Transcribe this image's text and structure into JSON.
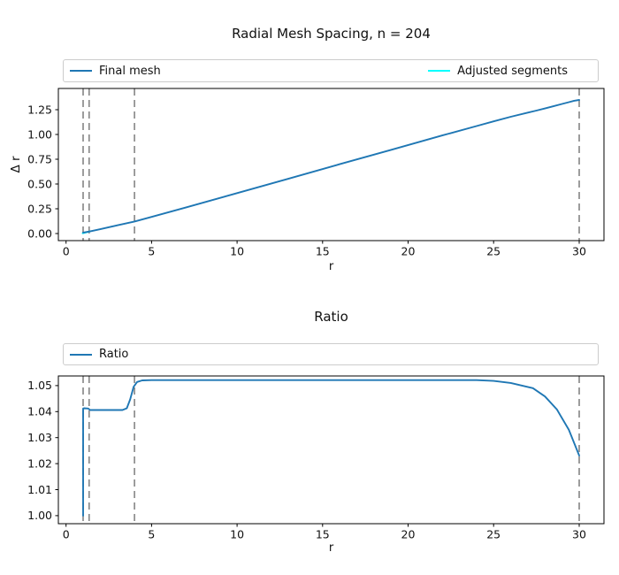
{
  "figure": {
    "background": "#ffffff",
    "spine_color": "#000000",
    "text_color": "#111111",
    "legend_border_color": "#cccccc"
  },
  "chart_data": [
    {
      "type": "line",
      "title": "Radial Mesh Spacing, n = 204",
      "xlabel": "r",
      "ylabel": "Δ r",
      "xlim": [
        -0.45,
        31.45
      ],
      "ylim": [
        -0.071,
        1.464
      ],
      "grid": false,
      "legend_position": "upper center, expanded row above axes",
      "xticks": {
        "values": [
          0,
          5,
          10,
          15,
          20,
          25,
          30
        ],
        "labels": [
          "0",
          "5",
          "10",
          "15",
          "20",
          "25",
          "30"
        ]
      },
      "yticks": {
        "values": [
          0.0,
          0.25,
          0.5,
          0.75,
          1.0,
          1.25
        ],
        "labels": [
          "0.00",
          "0.25",
          "0.50",
          "0.75",
          "1.00",
          "1.25"
        ]
      },
      "vlines": {
        "color": "#8c8c8c",
        "style": "dashed",
        "positions": [
          1.0,
          1.35,
          4.0,
          30.0
        ]
      },
      "legend": [
        {
          "label": "Final mesh",
          "color": "#1f77b4"
        },
        {
          "label": "Adjusted segments",
          "color": "#00ffff"
        }
      ],
      "series": [
        {
          "name": "Adjusted segments",
          "color": "#00ffff",
          "points": [
            [
              0.97,
              0.003
            ],
            [
              1.4,
              0.022
            ]
          ]
        },
        {
          "name": "Final mesh",
          "color": "#1f77b4",
          "points": [
            [
              1.0,
              0.01
            ],
            [
              1.4,
              0.022
            ],
            [
              2,
              0.044
            ],
            [
              3,
              0.083
            ],
            [
              4,
              0.122
            ],
            [
              5,
              0.168
            ],
            [
              7,
              0.263
            ],
            [
              10,
              0.408
            ],
            [
              13,
              0.553
            ],
            [
              16,
              0.7
            ],
            [
              19,
              0.845
            ],
            [
              22,
              0.99
            ],
            [
              24,
              1.085
            ],
            [
              25,
              1.132
            ],
            [
              26,
              1.178
            ],
            [
              27,
              1.22
            ],
            [
              27.5,
              1.241
            ],
            [
              28,
              1.262
            ],
            [
              28.5,
              1.285
            ],
            [
              29,
              1.308
            ],
            [
              29.4,
              1.326
            ],
            [
              29.7,
              1.34
            ],
            [
              30,
              1.348
            ]
          ]
        }
      ]
    },
    {
      "type": "line",
      "title": "Ratio",
      "xlabel": "r",
      "ylabel": "",
      "xlim": [
        -0.45,
        31.45
      ],
      "ylim": [
        0.9969,
        1.0537
      ],
      "grid": false,
      "legend_position": "upper center, expanded row above axes",
      "xticks": {
        "values": [
          0,
          5,
          10,
          15,
          20,
          25,
          30
        ],
        "labels": [
          "0",
          "5",
          "10",
          "15",
          "20",
          "25",
          "30"
        ]
      },
      "yticks": {
        "values": [
          1.0,
          1.01,
          1.02,
          1.03,
          1.04,
          1.05
        ],
        "labels": [
          "1.00",
          "1.01",
          "1.02",
          "1.03",
          "1.04",
          "1.05"
        ]
      },
      "vlines": {
        "color": "#8c8c8c",
        "style": "dashed",
        "positions": [
          1.0,
          1.35,
          4.0,
          30.0
        ]
      },
      "legend": [
        {
          "label": "Ratio",
          "color": "#1f77b4"
        }
      ],
      "series": [
        {
          "name": "Ratio",
          "color": "#1f77b4",
          "points": [
            [
              1.0,
              1.0
            ],
            [
              1.0,
              1.0412
            ],
            [
              1.05,
              1.0413
            ],
            [
              1.3,
              1.0412
            ],
            [
              1.4,
              1.0406
            ],
            [
              3.3,
              1.0406
            ],
            [
              3.55,
              1.0413
            ],
            [
              3.75,
              1.0447
            ],
            [
              3.95,
              1.0495
            ],
            [
              4.15,
              1.0514
            ],
            [
              4.45,
              1.052
            ],
            [
              5.0,
              1.0521
            ],
            [
              24.0,
              1.0521
            ],
            [
              25.0,
              1.0518
            ],
            [
              26.0,
              1.051
            ],
            [
              27.3,
              1.049
            ],
            [
              28.0,
              1.0458
            ],
            [
              28.7,
              1.0408
            ],
            [
              29.4,
              1.033
            ],
            [
              30.0,
              1.0231
            ]
          ]
        }
      ]
    }
  ]
}
